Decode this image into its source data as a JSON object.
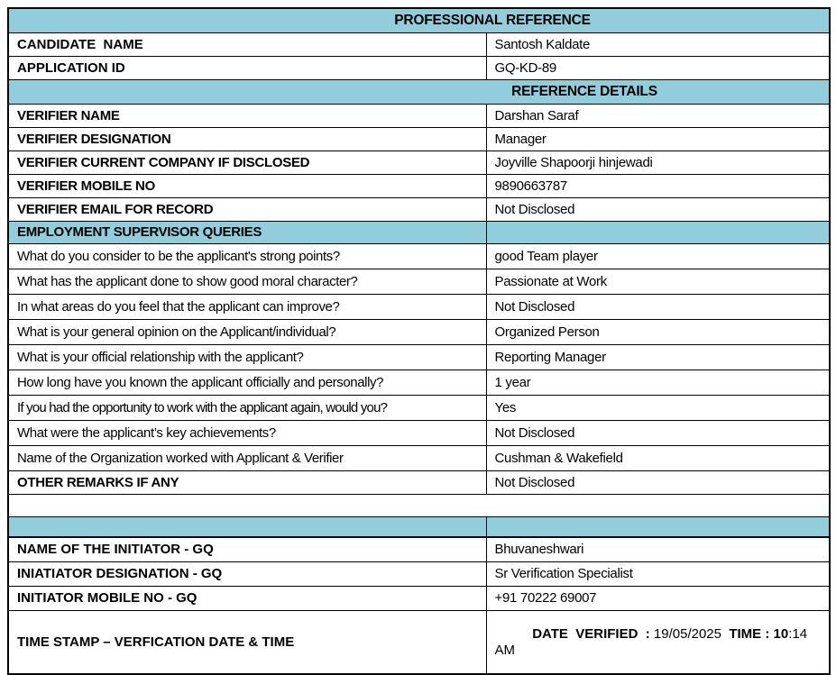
{
  "colors": {
    "section_bg": "#92CDDC",
    "border": "#000000",
    "text": "#000000",
    "page_bg": "#FFFFFF"
  },
  "title": "PROFESSIONAL REFERENCE",
  "candidate": {
    "rows": [
      {
        "label": "CANDIDATE  NAME",
        "value": "Santosh Kaldate"
      },
      {
        "label": "APPLICATION ID",
        "value": "GQ-KD-89"
      }
    ]
  },
  "reference_details": {
    "heading": "REFERENCE DETAILS",
    "rows": [
      {
        "label": "VERIFIER NAME",
        "value": "Darshan Saraf"
      },
      {
        "label": "VERIFIER DESIGNATION",
        "value": "Manager"
      },
      {
        "label": "VERIFIER CURRENT COMPANY IF DISCLOSED",
        "value": "Joyville Shapoorji hinjewadi"
      },
      {
        "label": "VERIFIER MOBILE NO",
        "value": "9890663787"
      },
      {
        "label": "VERIFIER EMAIL FOR RECORD",
        "value": "Not Disclosed"
      }
    ]
  },
  "supervisor_queries": {
    "heading": "EMPLOYMENT SUPERVISOR QUERIES",
    "rows": [
      {
        "question": "What do you consider to be the applicant's strong points?",
        "answer": "good Team player"
      },
      {
        "question": "What has the applicant done to show good moral character?",
        "answer": "Passionate at Work"
      },
      {
        "question": "In what areas do you feel that the applicant can improve?",
        "answer": "Not Disclosed"
      },
      {
        "question": "What is your general opinion on the Applicant/individual?",
        "answer": "Organized Person"
      },
      {
        "question": "What is your official relationship with the applicant?",
        "answer": "Reporting Manager"
      },
      {
        "question": "How long have you known the applicant officially and personally?",
        "answer": "1 year"
      },
      {
        "question": "If you had the opportunity to work with the applicant again, would you?",
        "answer": "Yes"
      },
      {
        "question": "What were the applicant’s key achievements?",
        "answer": "Not Disclosed"
      },
      {
        "question": "Name of the Organization worked with Applicant & Verifier",
        "answer": "Cushman & Wakefield"
      }
    ]
  },
  "other_remarks": {
    "label": "OTHER REMARKS IF ANY",
    "value": "Not Disclosed"
  },
  "initiator": {
    "rows": [
      {
        "label": "NAME OF THE INITIATOR - GQ",
        "value": "Bhuvaneshwari"
      },
      {
        "label": "INIATIATOR DESIGNATION - GQ",
        "value": "Sr Verification Specialist"
      },
      {
        "label": "INITIATOR MOBILE NO - GQ",
        "value": "+91 70222 69007"
      }
    ]
  },
  "timestamp": {
    "label": "TIME STAMP – VERFICATION DATE & TIME",
    "date_label": "DATE  VERIFIED  : ",
    "date_value": "19/05/2025",
    "gap": "  ",
    "time_label": "TIME : 10",
    "time_rest": ":14 AM"
  }
}
